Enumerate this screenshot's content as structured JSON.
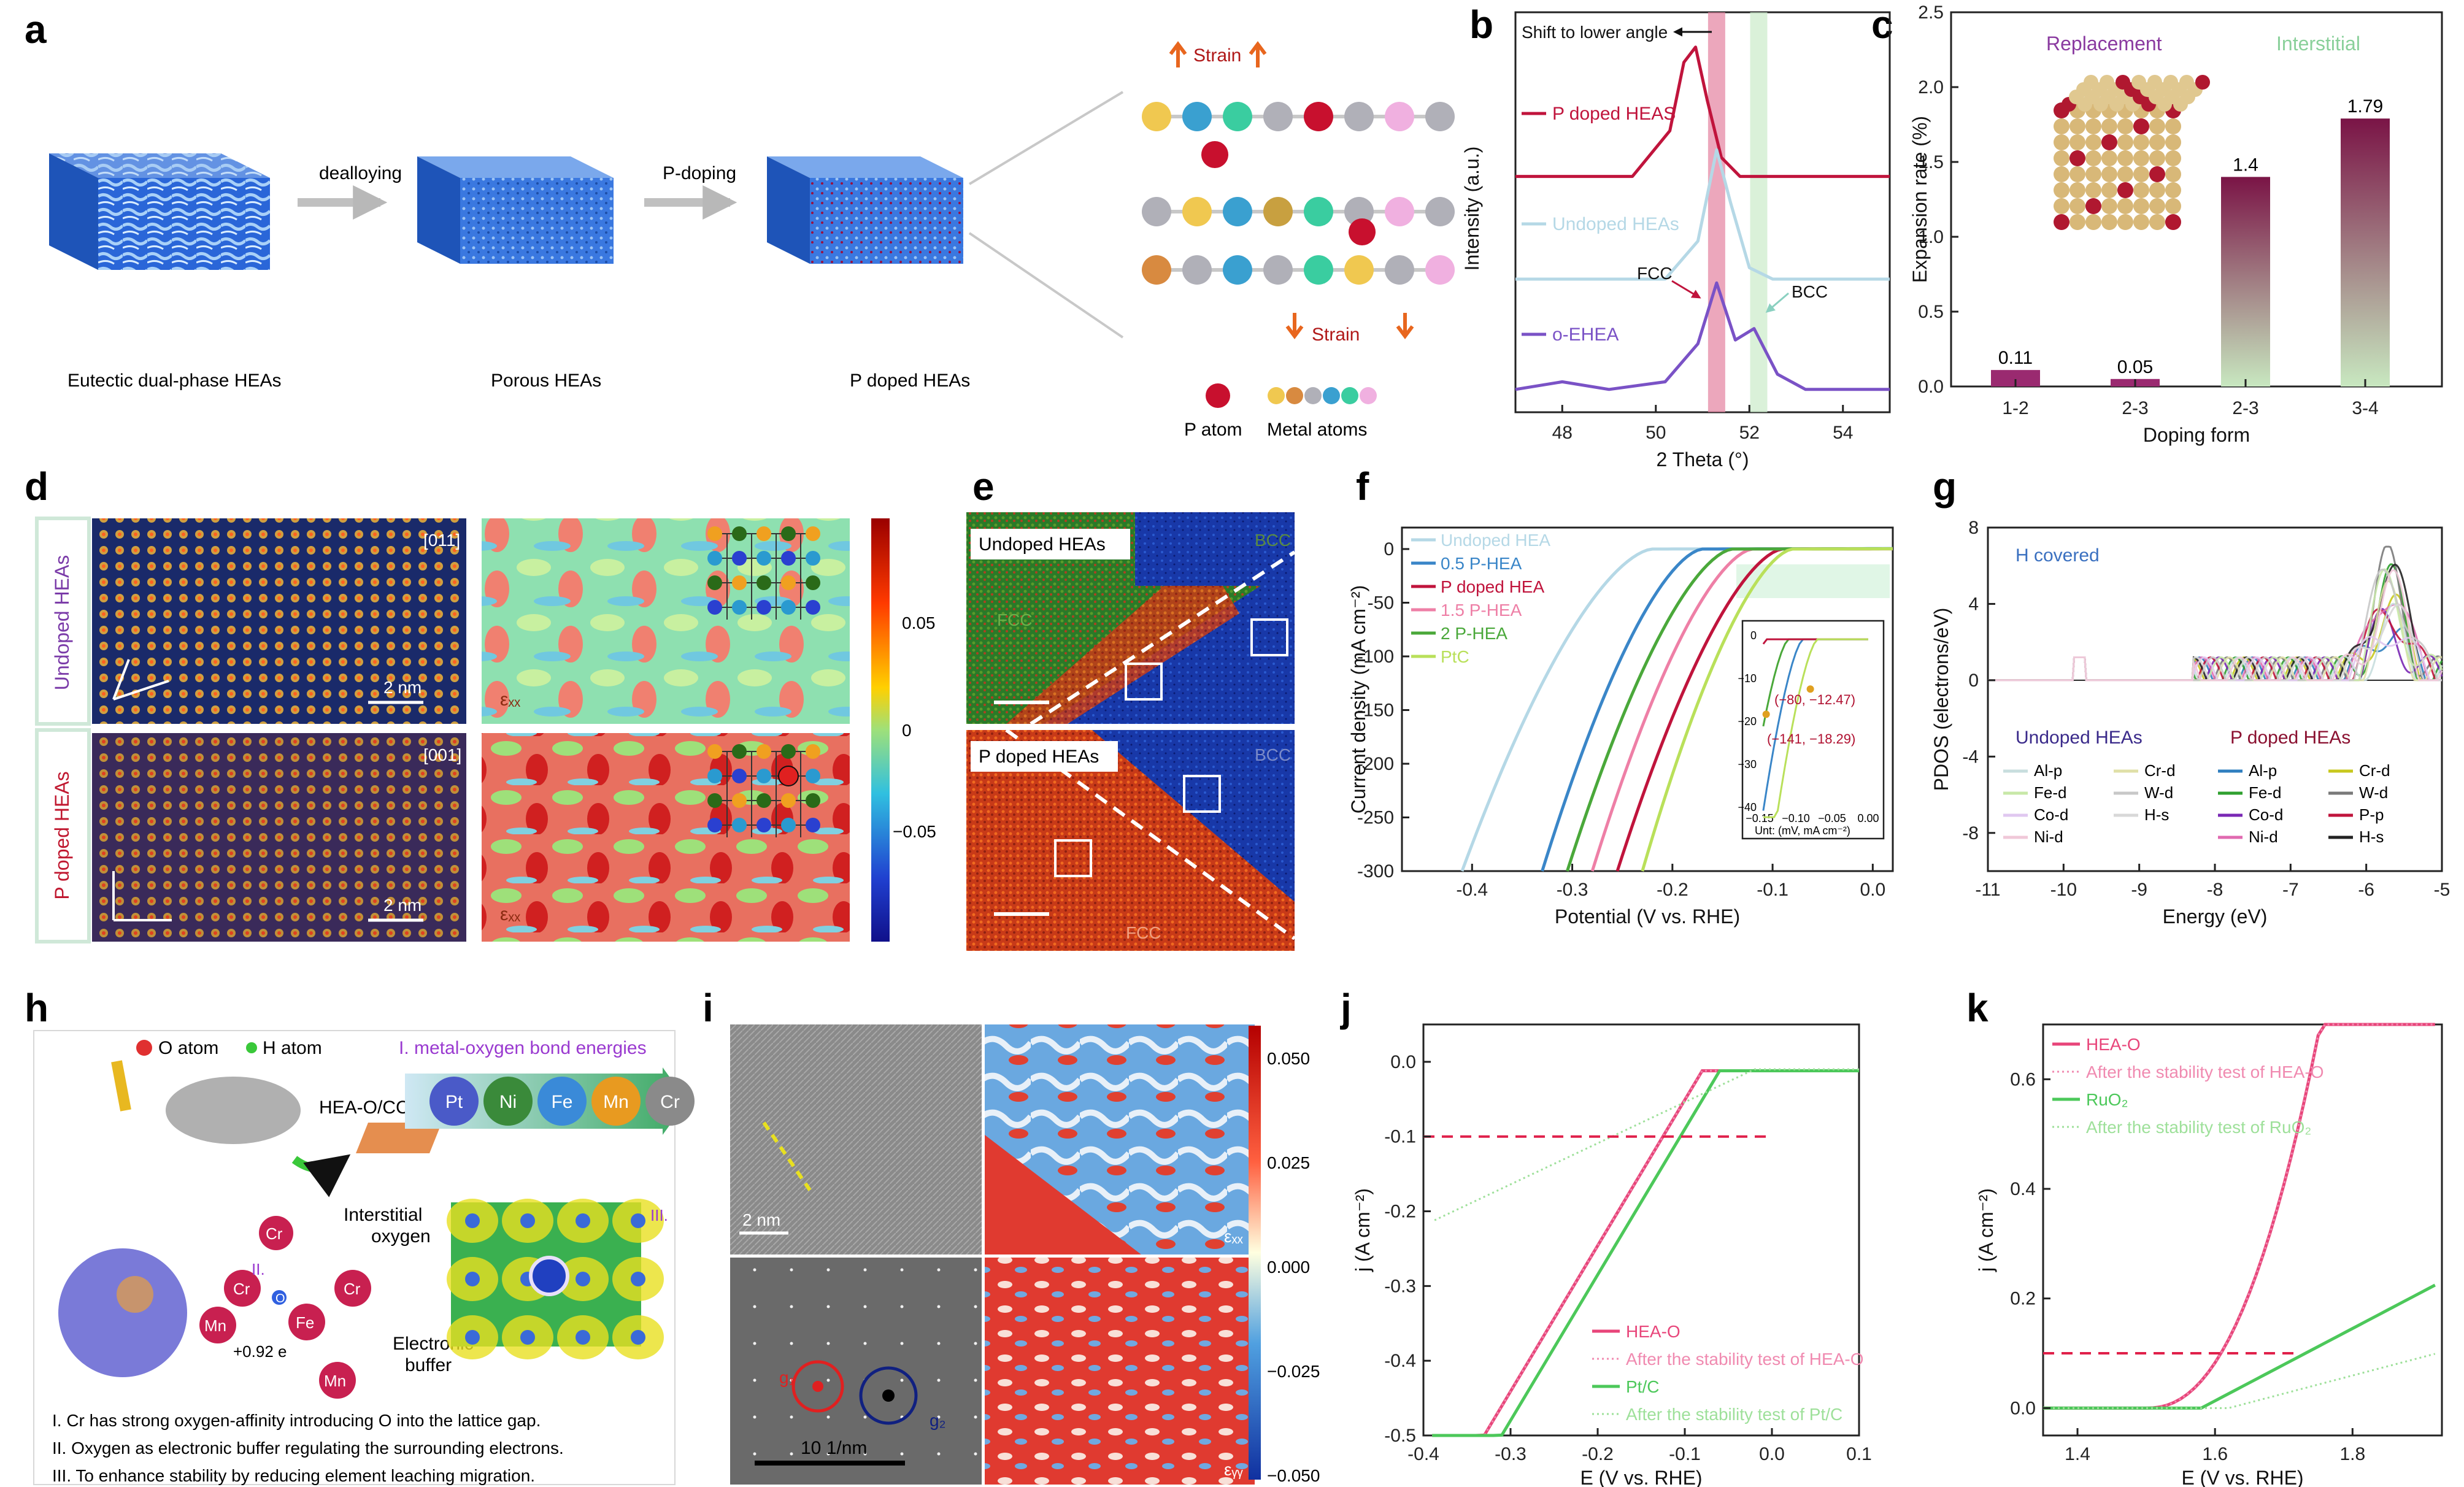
{
  "panel_labels": [
    "a",
    "b",
    "c",
    "d",
    "e",
    "f",
    "g",
    "h",
    "i",
    "j",
    "k"
  ],
  "panel_a": {
    "labels": [
      "Eutectic dual-phase HEAs",
      "Porous HEAs",
      "P doped HEAs"
    ],
    "arrow1": "dealloying",
    "arrow2": "P-doping",
    "strain_up": "Strain",
    "strain_down": "Strain",
    "legend_p": "P atom",
    "legend_metal": "Metal atoms"
  },
  "chart_data": [
    {
      "id": "b",
      "type": "line",
      "xlabel": "2 Theta (°)",
      "ylabel": "Intensity (a.u.)",
      "xlim": [
        47,
        55
      ],
      "xticks": [
        48,
        50,
        52,
        54
      ],
      "series": [
        {
          "name": "P doped HEAS",
          "color": "#c0143c",
          "offset": 0.62,
          "x": [
            47,
            49.5,
            50.3,
            50.6,
            50.85,
            51.1,
            51.4,
            51.8,
            55
          ],
          "y": [
            0.0,
            0.0,
            0.12,
            0.3,
            0.34,
            0.2,
            0.05,
            0.0,
            0.0
          ]
        },
        {
          "name": "Undoped HEAs",
          "color": "#b5d8e6",
          "offset": 0.35,
          "x": [
            47,
            50.2,
            50.9,
            51.3,
            51.6,
            52.0,
            52.5,
            55
          ],
          "y": [
            0.0,
            0.0,
            0.1,
            0.34,
            0.2,
            0.03,
            0.0,
            0.0
          ]
        },
        {
          "name": "o-EHEA",
          "color": "#7a52c6",
          "offset": 0.06,
          "x": [
            47,
            48,
            49,
            50.2,
            50.9,
            51.3,
            51.7,
            52.1,
            52.6,
            53.2,
            55
          ],
          "y": [
            0.0,
            0.02,
            0.0,
            0.02,
            0.12,
            0.28,
            0.13,
            0.16,
            0.04,
            0.0,
            0.0
          ]
        }
      ],
      "bands": [
        {
          "x": 51.3,
          "color": "#e58aa5"
        },
        {
          "x": 52.2,
          "color": "#cdeccc"
        }
      ],
      "annotations": [
        "Shift to lower angle",
        "FCC",
        "BCC"
      ]
    },
    {
      "id": "c",
      "type": "bar",
      "xlabel": "Doping form",
      "ylabel": "Expansion rate (%)",
      "ylim": [
        0,
        2.5
      ],
      "yticks": [
        0.0,
        0.5,
        1.0,
        1.5,
        2.0,
        2.5
      ],
      "categories": [
        "1-2",
        "2-3",
        "2-3",
        "3-4"
      ],
      "values": [
        0.11,
        0.05,
        1.4,
        1.79
      ],
      "value_labels": [
        "0.11",
        "0.05",
        "1.4",
        "1.79"
      ],
      "group_labels": [
        "Replacement",
        "Interstitial"
      ]
    },
    {
      "id": "f",
      "type": "line",
      "xlabel": "Potential (V vs. RHE)",
      "ylabel": "Current density (mA cm⁻²)",
      "xlim": [
        -0.47,
        0.02
      ],
      "ylim": [
        -300,
        20
      ],
      "xticks": [
        -0.4,
        -0.3,
        -0.2,
        -0.1,
        0.0
      ],
      "yticks": [
        0,
        -50,
        -100,
        -150,
        -200,
        -250,
        -300
      ],
      "series": [
        {
          "name": "Undoped HEA",
          "color": "#b5d8e6",
          "onset": -0.22,
          "x300": -0.41
        },
        {
          "name": "0.5 P-HEA",
          "color": "#3a86c8",
          "onset": -0.17,
          "x300": -0.33
        },
        {
          "name": "P doped HEA",
          "color": "#c0143c",
          "onset": -0.09,
          "x300": -0.255
        },
        {
          "name": "1.5 P-HEA",
          "color": "#ee7fa6",
          "onset": -0.12,
          "x300": -0.28
        },
        {
          "name": "2 P-HEA",
          "color": "#4aa83a",
          "onset": -0.14,
          "x300": -0.305
        },
        {
          "name": "PtC",
          "color": "#b9e05a",
          "onset": -0.08,
          "x300": -0.23
        }
      ],
      "inset": {
        "xticks": [
          "−0.15",
          "−0.10",
          "−0.05",
          "0.00"
        ],
        "yticks": [
          "0",
          "−10",
          "−20",
          "−30",
          "−40"
        ],
        "point1": "(−80, −12.47)",
        "point2": "(−141, −18.29)",
        "unit": "Unt: (mV, mA cm⁻²)"
      }
    },
    {
      "id": "g",
      "type": "line",
      "xlabel": "Energy (eV)",
      "ylabel": "PDOS (electrons/eV)",
      "xlim": [
        -11,
        -5
      ],
      "ylim": [
        -10,
        8
      ],
      "xticks": [
        -11,
        -10,
        -9,
        -8,
        -7,
        -6,
        -5
      ],
      "yticks": [
        8,
        4,
        0,
        -4,
        -8
      ],
      "title_note": "H covered",
      "legend_groups": [
        {
          "title": "Undoped HEAs",
          "items": [
            {
              "name": "Al-p",
              "color": "#c8dede"
            },
            {
              "name": "Cr-d",
              "color": "#e0e0a8"
            },
            {
              "name": "Fe-d",
              "color": "#c8e8a8"
            },
            {
              "name": "W-d",
              "color": "#c8c8c8"
            },
            {
              "name": "Co-d",
              "color": "#e0c8f0"
            },
            {
              "name": "H-s",
              "color": "#d8d8d8"
            },
            {
              "name": "Ni-d",
              "color": "#f0c8d8"
            }
          ]
        },
        {
          "title": "P doped HEAs",
          "items": [
            {
              "name": "Al-p",
              "color": "#2f7fbf"
            },
            {
              "name": "Cr-d",
              "color": "#c8c81e"
            },
            {
              "name": "Fe-d",
              "color": "#2fa02f"
            },
            {
              "name": "W-d",
              "color": "#7a7a7a"
            },
            {
              "name": "Co-d",
              "color": "#7a28b4"
            },
            {
              "name": "P-p",
              "color": "#c0143c"
            },
            {
              "name": "Ni-d",
              "color": "#e06ab0"
            },
            {
              "name": "H-s",
              "color": "#222222"
            }
          ]
        }
      ]
    },
    {
      "id": "j",
      "type": "line",
      "xlabel": "E (V vs. RHE)",
      "ylabel": "j (A cm⁻²)",
      "xlim": [
        -0.4,
        0.1
      ],
      "ylim": [
        -0.5,
        0.05
      ],
      "xticks": [
        -0.4,
        -0.3,
        -0.2,
        -0.1,
        0.0,
        0.1
      ],
      "yticks": [
        0.0,
        -0.1,
        -0.2,
        -0.3,
        -0.4,
        -0.5
      ],
      "reference_y": -0.1,
      "series": [
        {
          "name": "HEA-O",
          "color": "#e8457a",
          "style": "solid"
        },
        {
          "name": "After the stability test of HEA-O",
          "color": "#f08ab0",
          "style": "dotted"
        },
        {
          "name": "Pt/C",
          "color": "#4cc85a",
          "style": "solid"
        },
        {
          "name": "After the stability test of Pt/C",
          "color": "#9ee09a",
          "style": "dotted"
        }
      ]
    },
    {
      "id": "k",
      "type": "line",
      "xlabel": "E (V vs. RHE)",
      "ylabel": "j (A cm⁻²)",
      "xlim": [
        1.35,
        1.93
      ],
      "ylim": [
        -0.05,
        0.7
      ],
      "xticks": [
        1.4,
        1.6,
        1.8
      ],
      "yticks": [
        0.0,
        0.2,
        0.4,
        0.6
      ],
      "reference_y": 0.1,
      "series": [
        {
          "name": "HEA-O",
          "color": "#e8457a",
          "style": "solid"
        },
        {
          "name": "After the stability test of HEA-O",
          "color": "#f08ab0",
          "style": "dotted"
        },
        {
          "name": "RuO₂",
          "color": "#4cc85a",
          "style": "solid"
        },
        {
          "name": "After the stability test of RuO₂",
          "color": "#9ee09a",
          "style": "dotted"
        }
      ]
    }
  ],
  "panel_d": {
    "row_labels": [
      "Undoped HEAs",
      "P doped HEAs"
    ],
    "zone_top": "[011]",
    "zone_bottom": "[001]",
    "scale": "2 nm",
    "eps": "εₓₓ",
    "cbar_ticks": [
      "0.05",
      "0",
      "−0.05"
    ]
  },
  "panel_e": {
    "top_label": "Undoped HEAs",
    "bottom_label": "P doped HEAs",
    "fcc": "FCC",
    "bcc": "BCC"
  },
  "panel_h": {
    "o_atom": "O atom",
    "h_atom": "H atom",
    "title": "I. metal-oxygen bond energies",
    "elements": [
      "Pt",
      "Ni",
      "Fe",
      "Mn",
      "Cr"
    ],
    "hea_label": "HEA-O/CC",
    "interstitial": "Interstitial oxygen",
    "buffer": "Electronic buffer",
    "charge": "+0.92 e",
    "marks": [
      "II.",
      "III."
    ],
    "notes": [
      "I. Cr has strong oxygen-affinity introducing O into the lattice gap.",
      "II. Oxygen as electronic buffer regulating the surrounding electrons.",
      "III. To enhance stability by reducing element leaching migration."
    ]
  },
  "panel_i": {
    "scale_top": "2 nm",
    "scale_bottom": "10 1/nm",
    "g1": "g₁",
    "g2": "g₂",
    "eps_top": "εₓₓ",
    "eps_bottom": "εᵧᵧ",
    "cbar_ticks": [
      "0.050",
      "0.025",
      "0.000",
      "−0.025",
      "−0.050"
    ]
  }
}
